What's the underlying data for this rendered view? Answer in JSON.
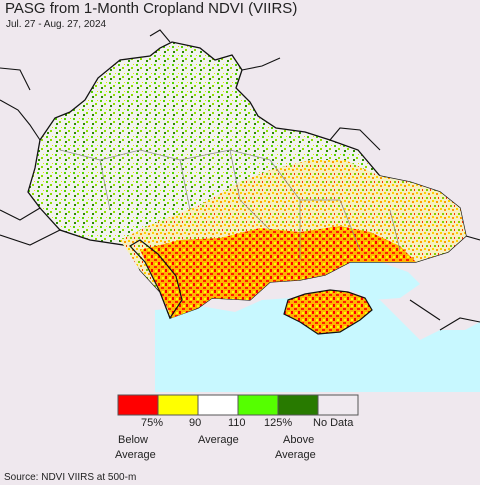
{
  "title": "PASG from 1-Month Cropland NDVI (VIIRS)",
  "date_range": "Jul. 27 - Aug. 27, 2024",
  "legend": {
    "colors": [
      "#ff0000",
      "#ffff00",
      "#ffffff",
      "#55ff00",
      "#287a00",
      "#f0eaf0"
    ],
    "tick_75": "75%",
    "tick_90": "90",
    "tick_110": "110",
    "tick_125": "125%",
    "no_data": "No Data",
    "below_1": "Below",
    "below_2": "Average",
    "average": "Average",
    "above_1": "Above",
    "above_2": "Average"
  },
  "source": "Source: NDVI VIIRS at 500-m",
  "colors": {
    "sea": "#c8f8ff",
    "land_background": "#efe8ee",
    "border": "#111111"
  }
}
